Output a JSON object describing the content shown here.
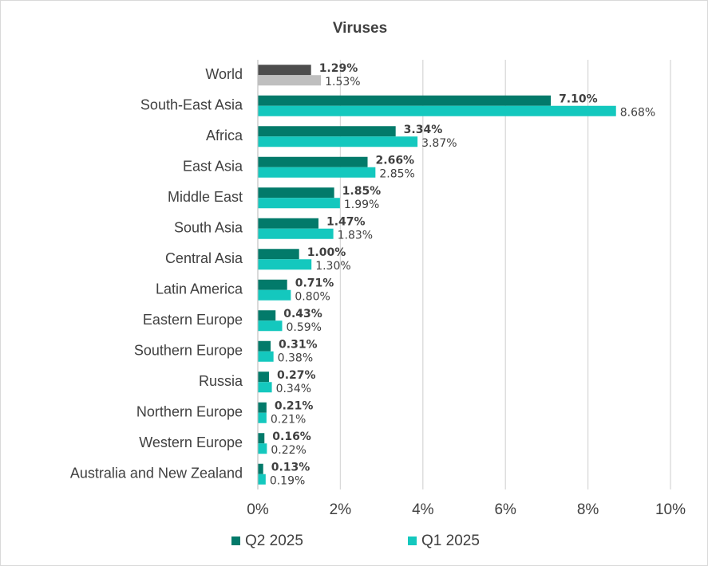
{
  "chart_data": {
    "type": "hbar",
    "title": "Viruses",
    "categories": [
      "World",
      "South-East Asia",
      "Africa",
      "East Asia",
      "Middle East",
      "South Asia",
      "Central Asia",
      "Latin America",
      "Eastern Europe",
      "Southern Europe",
      "Russia",
      "Northern Europe",
      "Western Europe",
      "Australia and New Zealand"
    ],
    "series": [
      {
        "name": "Q2 2025",
        "color": "#027a6a",
        "colors": [
          "#4d4d4d",
          "#027a6a",
          "#027a6a",
          "#027a6a",
          "#027a6a",
          "#027a6a",
          "#027a6a",
          "#027a6a",
          "#027a6a",
          "#027a6a",
          "#027a6a",
          "#027a6a",
          "#027a6a",
          "#027a6a"
        ],
        "values": [
          1.29,
          7.1,
          3.34,
          2.66,
          1.85,
          1.47,
          1.0,
          0.71,
          0.43,
          0.31,
          0.27,
          0.21,
          0.16,
          0.13
        ],
        "value_labels": [
          "1.29%",
          "7.10%",
          "3.34%",
          "2.66%",
          "1.85%",
          "1.47%",
          "1.00%",
          "0.71%",
          "0.43%",
          "0.31%",
          "0.27%",
          "0.21%",
          "0.16%",
          "0.13%"
        ]
      },
      {
        "name": "Q1 2025",
        "color": "#14c8be",
        "colors": [
          "#bfbfbf",
          "#14c8be",
          "#14c8be",
          "#14c8be",
          "#14c8be",
          "#14c8be",
          "#14c8be",
          "#14c8be",
          "#14c8be",
          "#14c8be",
          "#14c8be",
          "#14c8be",
          "#14c8be",
          "#14c8be"
        ],
        "values": [
          1.53,
          8.68,
          3.87,
          2.85,
          1.99,
          1.83,
          1.3,
          0.8,
          0.59,
          0.38,
          0.34,
          0.21,
          0.22,
          0.19
        ],
        "value_labels": [
          "1.53%",
          "8.68%",
          "3.87%",
          "2.85%",
          "1.99%",
          "1.83%",
          "1.30%",
          "0.80%",
          "0.59%",
          "0.38%",
          "0.34%",
          "0.21%",
          "0.22%",
          "0.19%"
        ]
      }
    ],
    "xlim": [
      0,
      10
    ],
    "xticks": [
      {
        "value": 0,
        "label": "0%"
      },
      {
        "value": 2,
        "label": "2%"
      },
      {
        "value": 4,
        "label": "4%"
      },
      {
        "value": 6,
        "label": "6%"
      },
      {
        "value": 8,
        "label": "8%"
      },
      {
        "value": 10,
        "label": "10%"
      }
    ],
    "grid": true
  }
}
